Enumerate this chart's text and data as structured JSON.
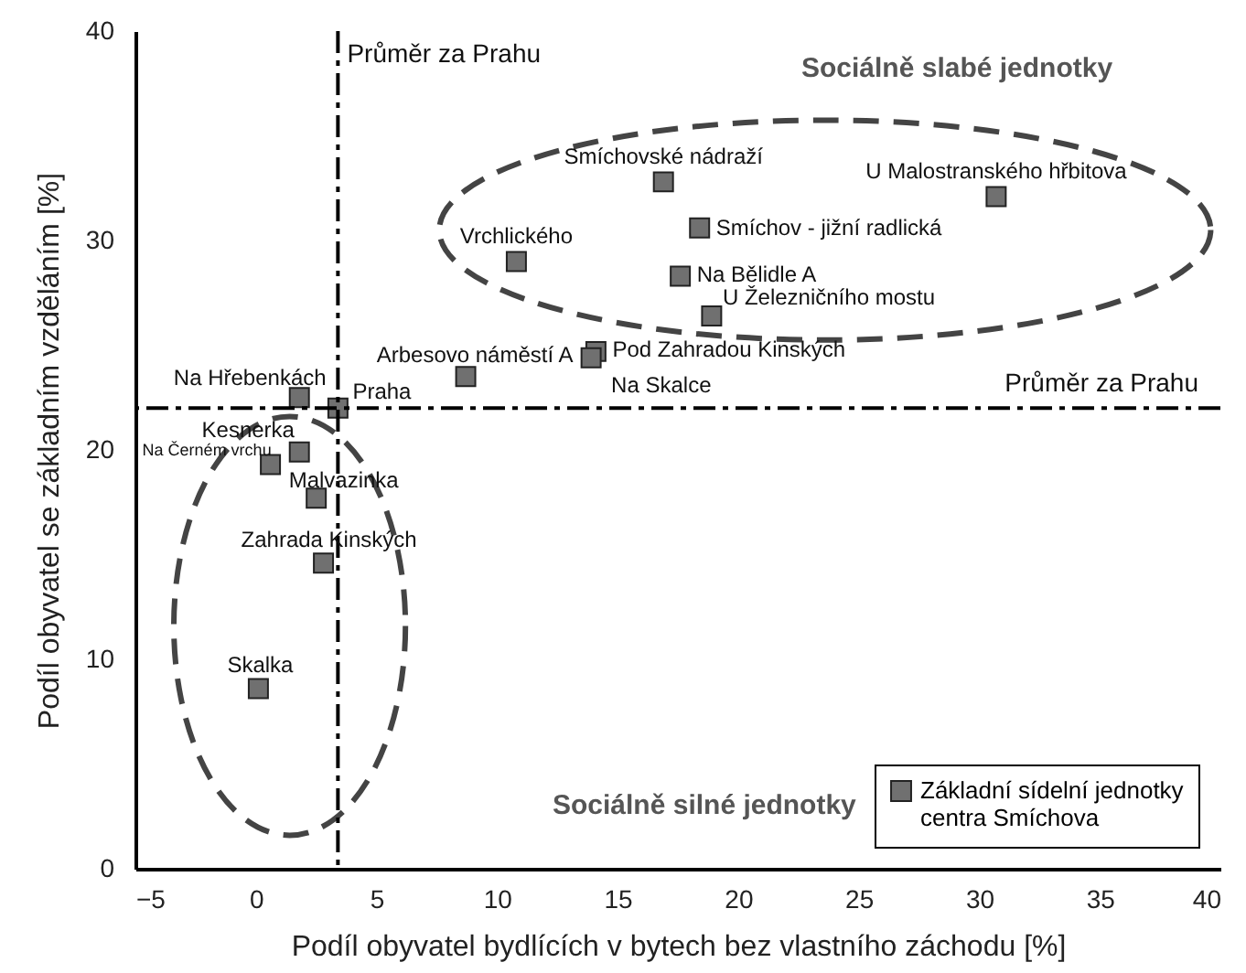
{
  "chart_data": {
    "type": "scatter",
    "xlabel": "Podíl obyvatel bydlících v bytech bez vlastního záchodu [%]",
    "ylabel": "Podíl obyvatel se základním vzděláním [%]",
    "x": [
      16.9,
      30.7,
      18.4,
      17.6,
      18.9,
      10.8,
      8.7,
      14.1,
      13.9,
      1.8,
      3.4,
      1.8,
      0.6,
      2.5,
      2.8,
      0.1
    ],
    "series": [
      {
        "name": "Základní sídelní jednotky centra Smíchova",
        "color": "#707070",
        "values": [
          32.8,
          32.1,
          30.6,
          28.3,
          26.4,
          29.0,
          23.5,
          24.7,
          24.4,
          22.5,
          22.0,
          19.9,
          19.3,
          17.7,
          14.6,
          8.6
        ]
      }
    ],
    "marker": "square",
    "xlim": [
      -5,
      40
    ],
    "ylim": [
      0,
      40
    ],
    "xticks": [
      -5,
      0,
      5,
      10,
      15,
      20,
      25,
      30,
      35,
      40
    ],
    "yticks": [
      0,
      10,
      20,
      30,
      40
    ],
    "grid": false,
    "legend": "bottom right",
    "ref_lines": [
      {
        "axis": "x",
        "value": 3.4,
        "label": "Průměr za Prahu",
        "color": "#000000",
        "line_style": "dashed"
      },
      {
        "axis": "y",
        "value": 22.0,
        "label": "Průměr za Prahu",
        "color": "#000000",
        "line_style": "dashed"
      }
    ],
    "annotations": [
      {
        "text": "Smíchovské nádraží",
        "x": 16.9,
        "y": 32.8
      },
      {
        "text": "U Malostranského hřbitova",
        "x": 30.7,
        "y": 32.1
      },
      {
        "text": "Smíchov - jižní radlická",
        "x": 18.4,
        "y": 30.6
      },
      {
        "text": "Na Bělidle  A",
        "x": 17.6,
        "y": 28.3
      },
      {
        "text": "U  Železničního mostu",
        "x": 18.9,
        "y": 26.4
      },
      {
        "text": "Vrchlického",
        "x": 10.8,
        "y": 29.0
      },
      {
        "text": "Arbesovo náměstí A",
        "x": 8.7,
        "y": 23.5
      },
      {
        "text": "Pod Zahradou Kinských",
        "x": 14.1,
        "y": 24.7
      },
      {
        "text": "Na Skalce",
        "x": 13.9,
        "y": 24.4
      },
      {
        "text": "Na Hřebenkách",
        "x": 1.8,
        "y": 22.5
      },
      {
        "text": "Praha",
        "x": 3.4,
        "y": 22.0
      },
      {
        "text": "Kesnerka",
        "x": 1.8,
        "y": 19.9
      },
      {
        "text": "Na  Černém vrchu",
        "x": 0.6,
        "y": 19.3
      },
      {
        "text": "Malvazinka",
        "x": 2.5,
        "y": 17.7
      },
      {
        "text": "Zahrada Kinských",
        "x": 2.8,
        "y": 14.6
      },
      {
        "text": "Skalka",
        "x": 0.1,
        "y": 8.6
      },
      "Sociálně slabé jednotky",
      "Sociálně silné jednotky"
    ]
  }
}
